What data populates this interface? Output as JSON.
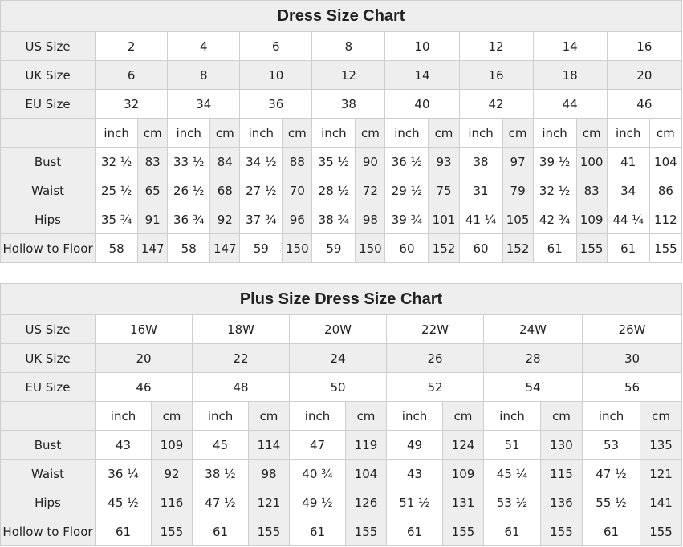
{
  "charts": [
    {
      "title": "Dress Size Chart",
      "us_label": "US Size",
      "us": [
        "2",
        "4",
        "6",
        "8",
        "10",
        "12",
        "14",
        "16"
      ],
      "uk_label": "UK Size",
      "uk": [
        "6",
        "8",
        "10",
        "12",
        "14",
        "16",
        "18",
        "20"
      ],
      "eu_label": "EU Size",
      "eu": [
        "32",
        "34",
        "36",
        "38",
        "40",
        "42",
        "44",
        "46"
      ],
      "unit_inch": "inch",
      "unit_cm": "cm",
      "rows": [
        {
          "label": "Bust",
          "values": [
            [
              "32 ½",
              "83"
            ],
            [
              "33 ½",
              "84"
            ],
            [
              "34 ½",
              "88"
            ],
            [
              "35 ½",
              "90"
            ],
            [
              "36 ½",
              "93"
            ],
            [
              "38",
              "97"
            ],
            [
              "39 ½",
              "100"
            ],
            [
              "41",
              "104"
            ]
          ]
        },
        {
          "label": "Waist",
          "values": [
            [
              "25 ½",
              "65"
            ],
            [
              "26 ½",
              "68"
            ],
            [
              "27 ½",
              "70"
            ],
            [
              "28 ½",
              "72"
            ],
            [
              "29 ½",
              "75"
            ],
            [
              "31",
              "79"
            ],
            [
              "32 ½",
              "83"
            ],
            [
              "34",
              "86"
            ]
          ]
        },
        {
          "label": "Hips",
          "values": [
            [
              "35 ¾",
              "91"
            ],
            [
              "36 ¾",
              "92"
            ],
            [
              "37 ¾",
              "96"
            ],
            [
              "38 ¾",
              "98"
            ],
            [
              "39 ¾",
              "101"
            ],
            [
              "41 ¼",
              "105"
            ],
            [
              "42 ¾",
              "109"
            ],
            [
              "44 ¼",
              "112"
            ]
          ]
        },
        {
          "label": "Hollow to Floor",
          "values": [
            [
              "58",
              "147"
            ],
            [
              "58",
              "147"
            ],
            [
              "59",
              "150"
            ],
            [
              "59",
              "150"
            ],
            [
              "60",
              "152"
            ],
            [
              "60",
              "152"
            ],
            [
              "61",
              "155"
            ],
            [
              "61",
              "155"
            ]
          ]
        }
      ]
    },
    {
      "title": "Plus Size Dress Size Chart",
      "us_label": "US Size",
      "us": [
        "16W",
        "18W",
        "20W",
        "22W",
        "24W",
        "26W"
      ],
      "uk_label": "UK Size",
      "uk": [
        "20",
        "22",
        "24",
        "26",
        "28",
        "30"
      ],
      "eu_label": "EU Size",
      "eu": [
        "46",
        "48",
        "50",
        "52",
        "54",
        "56"
      ],
      "unit_inch": "inch",
      "unit_cm": "cm",
      "rows": [
        {
          "label": "Bust",
          "values": [
            [
              "43",
              "109"
            ],
            [
              "45",
              "114"
            ],
            [
              "47",
              "119"
            ],
            [
              "49",
              "124"
            ],
            [
              "51",
              "130"
            ],
            [
              "53",
              "135"
            ]
          ]
        },
        {
          "label": "Waist",
          "values": [
            [
              "36 ¼",
              "92"
            ],
            [
              "38 ½",
              "98"
            ],
            [
              "40 ¾",
              "104"
            ],
            [
              "43",
              "109"
            ],
            [
              "45 ¼",
              "115"
            ],
            [
              "47 ½",
              "121"
            ]
          ]
        },
        {
          "label": "Hips",
          "values": [
            [
              "45 ½",
              "116"
            ],
            [
              "47 ½",
              "121"
            ],
            [
              "49 ½",
              "126"
            ],
            [
              "51 ½",
              "131"
            ],
            [
              "53 ½",
              "136"
            ],
            [
              "55 ½",
              "141"
            ]
          ]
        },
        {
          "label": "Hollow to Floor",
          "values": [
            [
              "61",
              "155"
            ],
            [
              "61",
              "155"
            ],
            [
              "61",
              "155"
            ],
            [
              "61",
              "155"
            ],
            [
              "61",
              "155"
            ],
            [
              "61",
              "155"
            ]
          ]
        }
      ]
    }
  ]
}
